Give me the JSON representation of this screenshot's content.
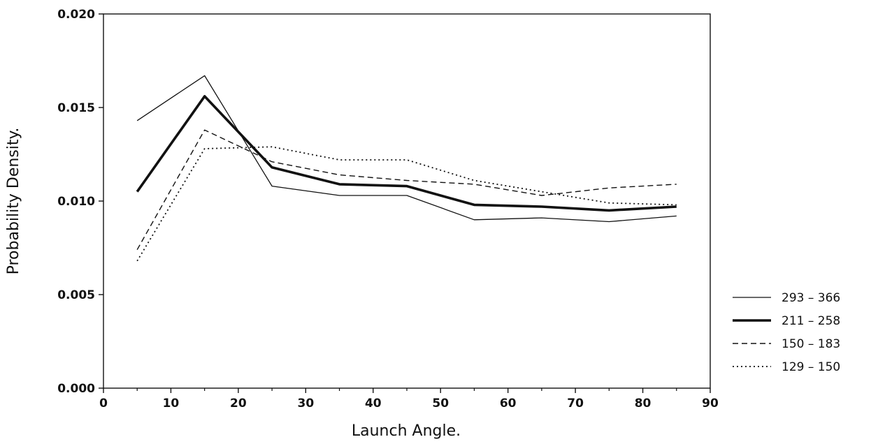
{
  "chart_data": {
    "type": "line",
    "title": "",
    "xlabel": "Launch Angle.",
    "ylabel": "Probability Density.",
    "xlim": [
      0,
      90
    ],
    "ylim": [
      0.0,
      0.02
    ],
    "x_ticks": [
      0,
      10,
      20,
      30,
      40,
      50,
      60,
      70,
      80,
      90
    ],
    "y_ticks": [
      0.0,
      0.005,
      0.01,
      0.015,
      0.02
    ],
    "x_tick_labels": [
      "0",
      "10",
      "20",
      "30",
      "40",
      "50",
      "60",
      "70",
      "80",
      "90"
    ],
    "y_tick_labels": [
      "0.000",
      "0.005",
      "0.010",
      "0.015",
      "0.020"
    ],
    "grid": false,
    "legend_position": "right",
    "x": [
      5,
      15,
      25,
      35,
      45,
      55,
      65,
      75,
      85
    ],
    "series": [
      {
        "name": "293 – 366",
        "style": "thin-solid",
        "values": [
          0.0143,
          0.0167,
          0.0108,
          0.0103,
          0.0103,
          0.009,
          0.0091,
          0.0089,
          0.0092
        ]
      },
      {
        "name": "211 – 258",
        "style": "thick-solid",
        "values": [
          0.0105,
          0.0156,
          0.0118,
          0.0109,
          0.0108,
          0.0098,
          0.0097,
          0.0095,
          0.0097
        ]
      },
      {
        "name": "150 – 183",
        "style": "dashed",
        "values": [
          0.0074,
          0.0138,
          0.0121,
          0.0114,
          0.0111,
          0.0109,
          0.0103,
          0.0107,
          0.0109
        ]
      },
      {
        "name": "129 – 150",
        "style": "dotted",
        "values": [
          0.0068,
          0.0128,
          0.0129,
          0.0122,
          0.0122,
          0.0111,
          0.0105,
          0.0099,
          0.0098
        ]
      }
    ]
  }
}
